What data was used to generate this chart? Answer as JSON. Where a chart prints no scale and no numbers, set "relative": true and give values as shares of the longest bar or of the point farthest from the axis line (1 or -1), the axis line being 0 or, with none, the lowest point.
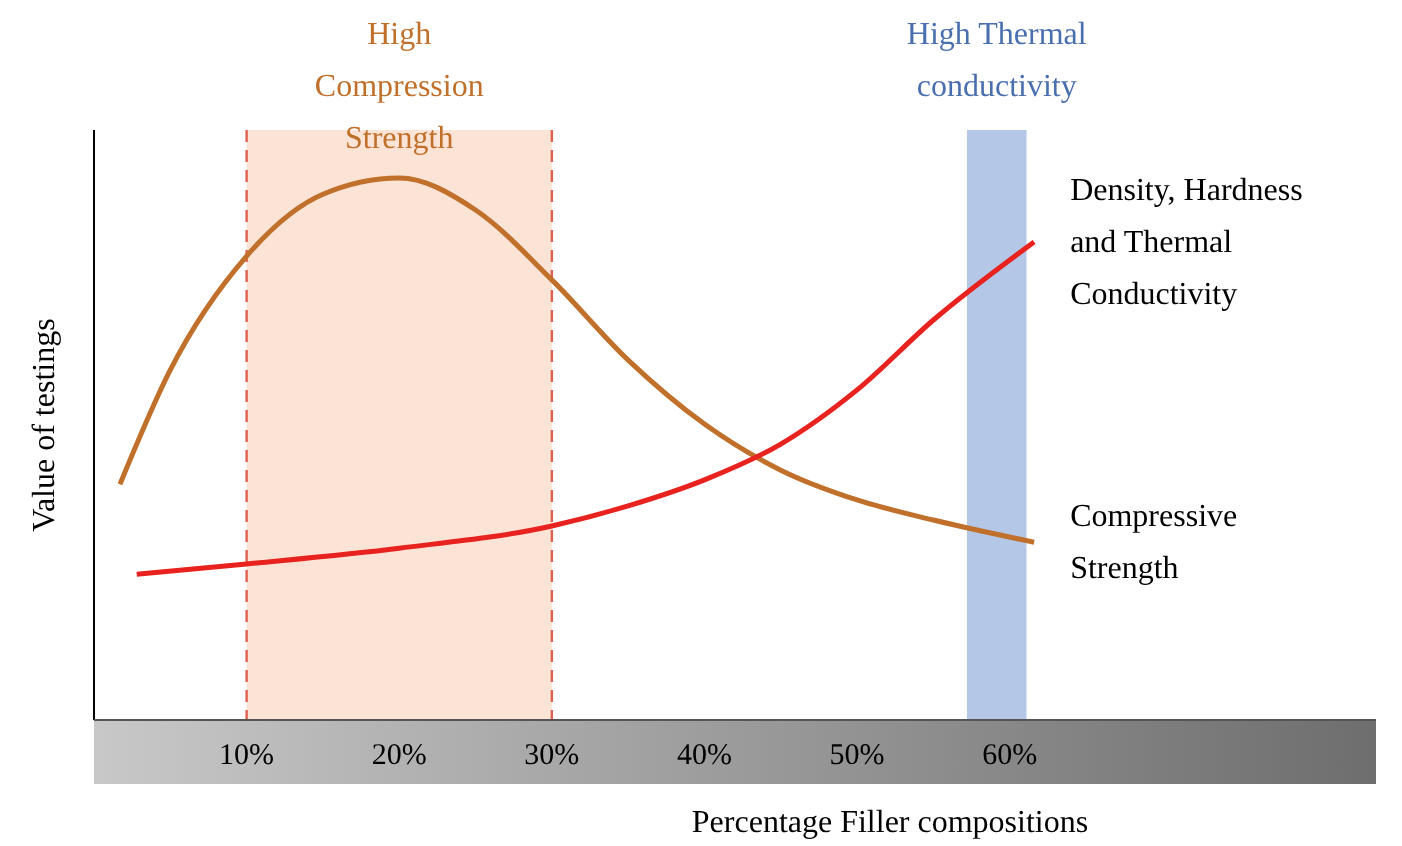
{
  "chart_data": {
    "type": "line",
    "relative": true,
    "xlabel": "Percentage Filler compositions",
    "ylabel": "Value of testings",
    "xlim": [
      0,
      84
    ],
    "xticks": [
      {
        "value": 10,
        "label": "10%"
      },
      {
        "value": 20,
        "label": "20%"
      },
      {
        "value": 30,
        "label": "30%"
      },
      {
        "value": 40,
        "label": "40%"
      },
      {
        "value": 50,
        "label": "50%"
      },
      {
        "value": 60,
        "label": "60%"
      }
    ],
    "series": [
      {
        "name": "Compressive Strength",
        "color": "#c0702a",
        "x": [
          1.7,
          5,
          10,
          15,
          20,
          25,
          30,
          35,
          40,
          45,
          50,
          55,
          61.6
        ],
        "values": [
          0.435,
          0.646,
          0.856,
          0.97,
          1,
          0.941,
          0.812,
          0.664,
          0.546,
          0.461,
          0.406,
          0.369,
          0.328
        ]
      },
      {
        "name": "Density, Hardness and Thermal Conductivity",
        "color": "#e8221e",
        "x": [
          2.8,
          10,
          20,
          30,
          35,
          40,
          45,
          50,
          55,
          61.6
        ],
        "values": [
          0.269,
          0.288,
          0.317,
          0.358,
          0.395,
          0.443,
          0.509,
          0.609,
          0.738,
          0.882
        ]
      }
    ],
    "bands": [
      {
        "axis": "x",
        "from": 10,
        "to": 30,
        "label": "High Compression Strength",
        "color": "#fbe3d6"
      },
      {
        "axis": "x",
        "from": 57.2,
        "to": 61.1,
        "label": "High Thermal conductivity",
        "color": "#b4c7e7"
      }
    ],
    "ref_lines": [
      {
        "axis": "x",
        "value": 10,
        "color": "#e06050",
        "line_style": "dashed"
      },
      {
        "axis": "x",
        "value": 30,
        "color": "#e06050",
        "line_style": "dashed"
      }
    ],
    "marker": "none",
    "line_style": "solid"
  }
}
